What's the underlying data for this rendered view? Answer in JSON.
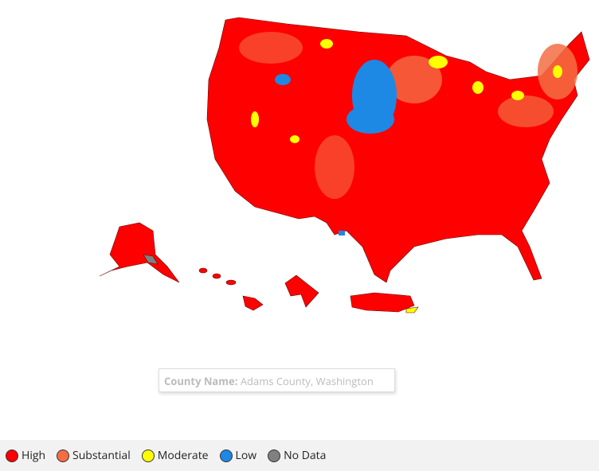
{
  "tooltip": {
    "label": "County Name:",
    "value": "Adams County, Washington"
  },
  "legend": [
    {
      "label": "High",
      "color": "#ff0000"
    },
    {
      "label": "Substantial",
      "color": "#f46d43"
    },
    {
      "label": "Moderate",
      "color": "#ffff00"
    },
    {
      "label": "Low",
      "color": "#1e88e5"
    },
    {
      "label": "No Data",
      "color": "#808080"
    }
  ]
}
